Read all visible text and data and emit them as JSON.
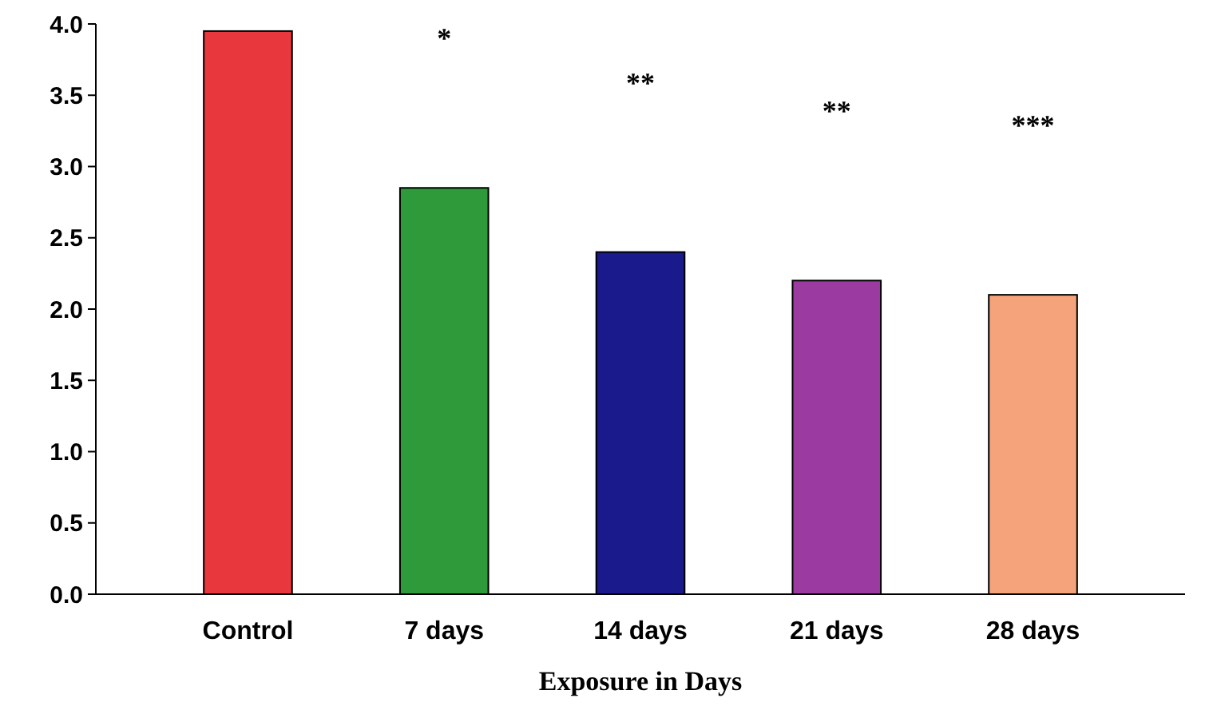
{
  "chart_data": {
    "type": "bar",
    "xlabel": "Exposure in Days",
    "categories": [
      "Control",
      "7 days",
      "14 days",
      "21 days",
      "28 days"
    ],
    "values": [
      3.95,
      2.85,
      2.4,
      2.2,
      2.1
    ],
    "colors": [
      "#e8383d",
      "#2e9a3a",
      "#1a1a8c",
      "#9b3aa0",
      "#f5a37a"
    ],
    "ylim": [
      0,
      4
    ],
    "yticks": [
      {
        "value": 0,
        "label": "0.0"
      },
      {
        "value": 0.5,
        "label": "0.5"
      },
      {
        "value": 1,
        "label": "1.0"
      },
      {
        "value": 1.5,
        "label": "1.5"
      },
      {
        "value": 2,
        "label": "2.0"
      },
      {
        "value": 2.5,
        "label": "2.5"
      },
      {
        "value": 3,
        "label": "3.0"
      },
      {
        "value": 3.5,
        "label": "3.5"
      },
      {
        "value": 4,
        "label": "4.0"
      }
    ],
    "annotations": [
      "*",
      "**",
      "**",
      "***"
    ]
  }
}
